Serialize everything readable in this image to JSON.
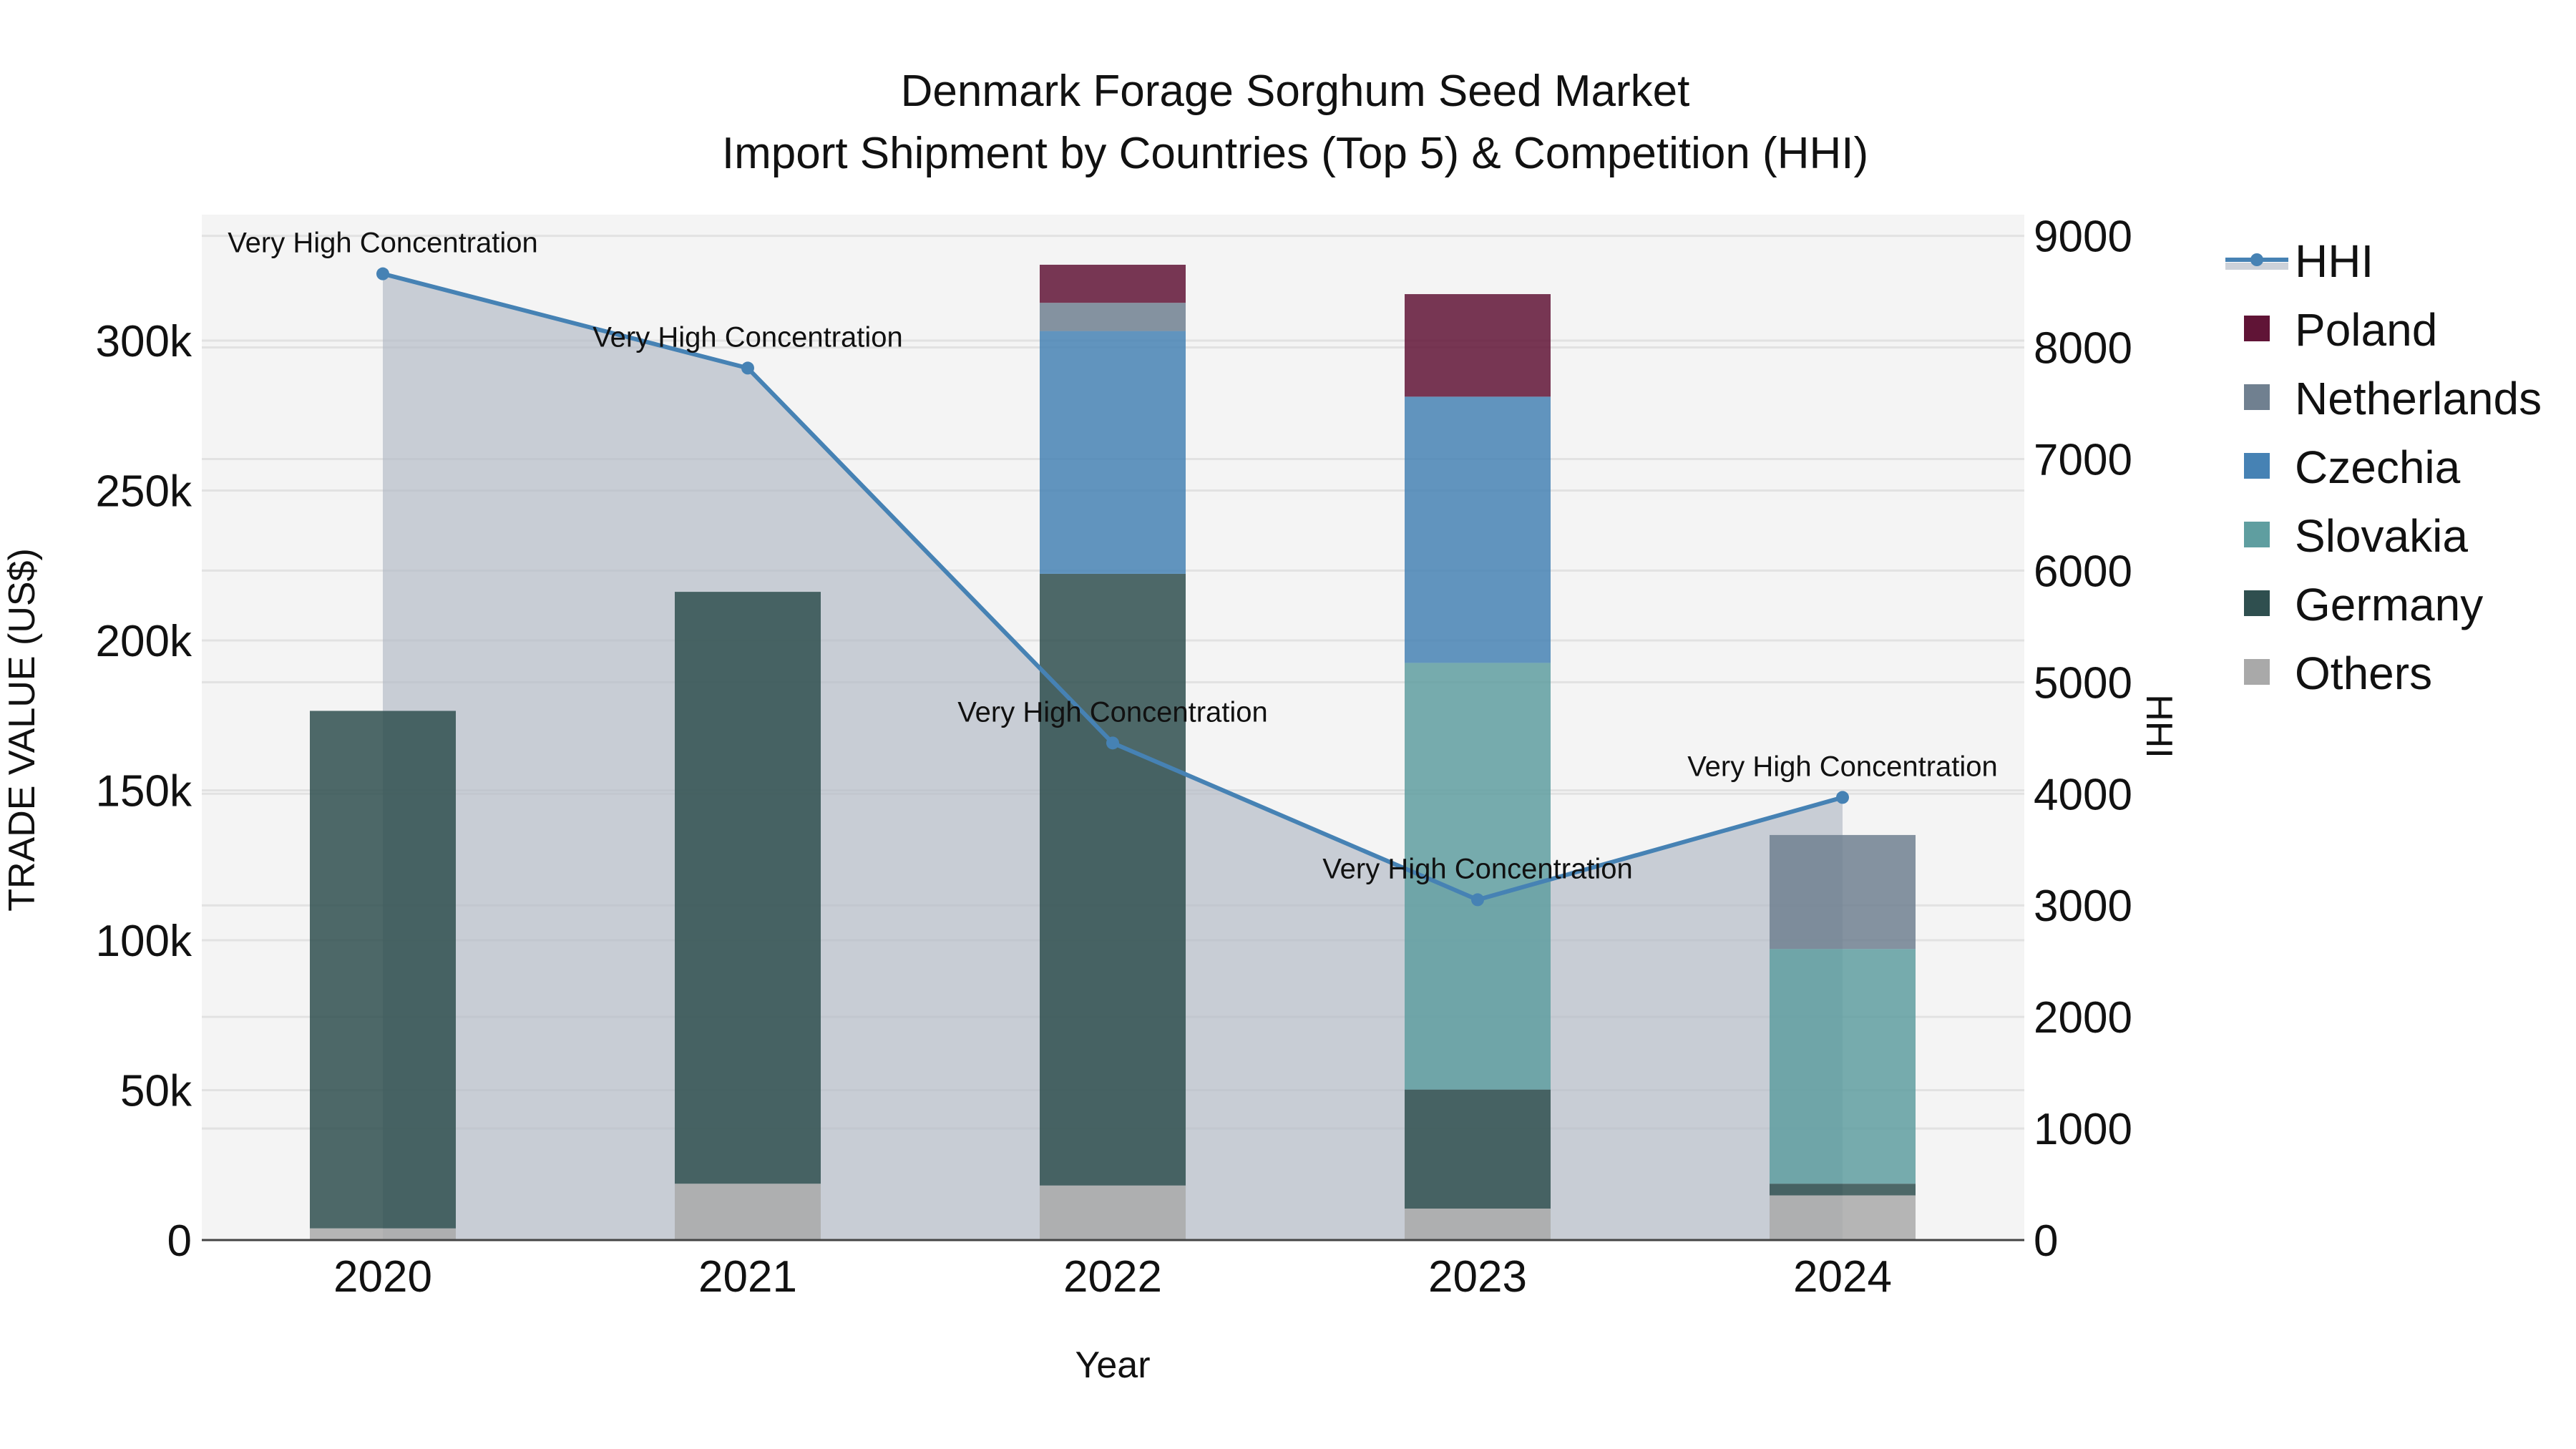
{
  "chart_data": {
    "type": "bar",
    "subtype": "stacked-bar-with-line-secondary-axis",
    "title": "Denmark Forage Sorghum Seed Market",
    "subtitle": "Import Shipment by Countries (Top 5) & Competition (HHI)",
    "xlabel": "Year",
    "ylabel": "TRADE VALUE (US$)",
    "y2label": "HHI",
    "categories": [
      "2020",
      "2021",
      "2022",
      "2023",
      "2024"
    ],
    "ylim": [
      0,
      342000
    ],
    "y_ticks": [
      0,
      50000,
      100000,
      150000,
      200000,
      250000,
      300000
    ],
    "y_tick_labels": [
      "0",
      "50k",
      "100k",
      "150k",
      "200k",
      "250k",
      "300k"
    ],
    "y2lim": [
      0,
      9190
    ],
    "y2_ticks": [
      0,
      1000,
      2000,
      3000,
      4000,
      5000,
      6000,
      7000,
      8000,
      9000
    ],
    "y2_tick_labels": [
      "0",
      "1000",
      "2000",
      "3000",
      "4000",
      "5000",
      "6000",
      "7000",
      "8000",
      "9000"
    ],
    "grid": true,
    "legend_position": "right",
    "series": [
      {
        "name": "Others",
        "color": "#a9a9a9",
        "values": [
          3900,
          18800,
          18200,
          10500,
          14900
        ]
      },
      {
        "name": "Germany",
        "color": "#2f4f4f",
        "values": [
          172600,
          197400,
          204000,
          39700,
          3900
        ]
      },
      {
        "name": "Slovakia",
        "color": "#5f9ea0",
        "values": [
          0,
          0,
          0,
          142300,
          78300
        ]
      },
      {
        "name": "Czechia",
        "color": "#4682b4",
        "values": [
          0,
          0,
          81000,
          88800,
          0
        ]
      },
      {
        "name": "Netherlands",
        "color": "#708090",
        "values": [
          0,
          0,
          9400,
          0,
          38000
        ]
      },
      {
        "name": "Poland",
        "color": "#601436",
        "values": [
          0,
          0,
          12700,
          34200,
          0
        ]
      }
    ],
    "line_series": {
      "name": "HHI",
      "color": "#4682b4",
      "fill_color": "rgba(176,184,196,0.65)",
      "values": [
        8660,
        7815,
        4455,
        3050,
        3967
      ],
      "annotations": [
        "Very High Concentration",
        "Very High Concentration",
        "Very High Concentration",
        "Very High Concentration",
        "Very High Concentration"
      ]
    }
  },
  "legend": {
    "items": [
      {
        "label": "HHI",
        "color": "#4682b4",
        "kind": "line"
      },
      {
        "label": "Poland",
        "color": "#601436",
        "kind": "box"
      },
      {
        "label": "Netherlands",
        "color": "#708090",
        "kind": "box"
      },
      {
        "label": "Czechia",
        "color": "#4682b4",
        "kind": "box"
      },
      {
        "label": "Slovakia",
        "color": "#5f9ea0",
        "kind": "box"
      },
      {
        "label": "Germany",
        "color": "#2f4f4f",
        "kind": "box"
      },
      {
        "label": "Others",
        "color": "#a9a9a9",
        "kind": "box"
      }
    ]
  },
  "colors": {
    "plot_bg": "#f4f4f4",
    "grid": "#e2e2e2",
    "axis_line": "#444444"
  }
}
